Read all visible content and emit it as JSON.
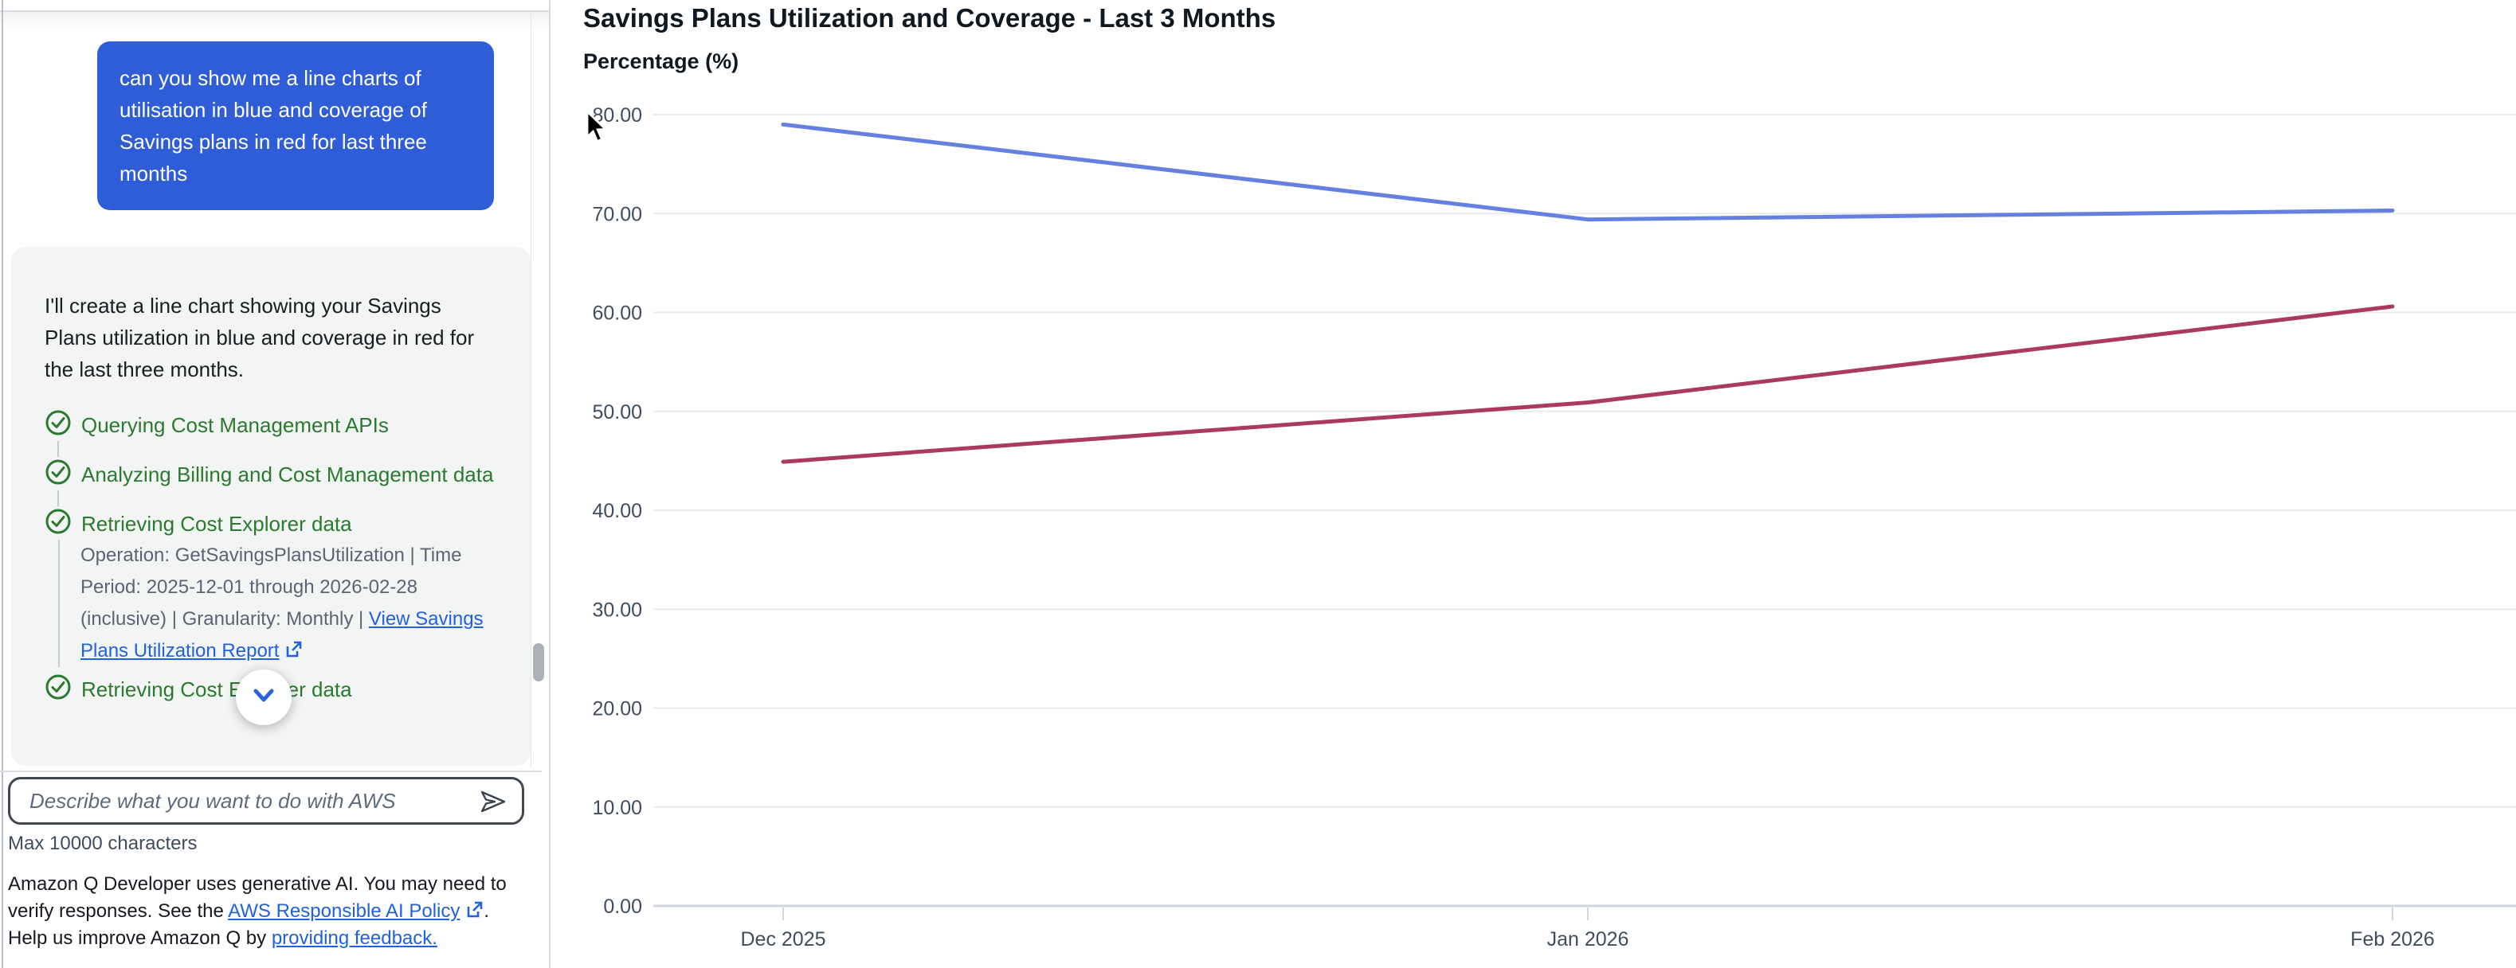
{
  "colors": {
    "user_bubble_blue": "#2f5dd8",
    "link_blue": "#2161de",
    "step_green": "#2b7a2f",
    "detail_gray": "#5b6572",
    "axis_label": "#414d5c",
    "gridline": "#e9ebee",
    "axis_line": "#d2d7dd"
  },
  "sidebar": {
    "user_message": "can you show me a line charts of utilisation in blue and coverage of Savings plans in red for last three months",
    "assistant_intro": "I'll create a line chart showing your Savings Plans utilization in blue and coverage in red for the last three months.",
    "steps": {
      "step1": "Querying Cost Management APIs",
      "step2": "Analyzing Billing and Cost Management data",
      "step3": "Retrieving Cost Explorer data",
      "step3_detail_prefix": "Operation: GetSavingsPlansUtilization | Time Period: 2025-12-01 through 2026-02-28 (inclusive) | Granularity: Monthly |  ",
      "step3_detail_link": "View Savings Plans Utilization Report",
      "step4": "Retrieving Cost Explorer data"
    },
    "input": {
      "placeholder": "Describe what you want to do with AWS",
      "max_note": "Max 10000 characters"
    },
    "footer": {
      "text_before_policy": "Amazon Q Developer uses generative AI. You may need to verify responses. See the ",
      "policy_link": "AWS Responsible AI Policy",
      "text_between": ". Help us improve Amazon Q by ",
      "feedback_link": "providing feedback."
    }
  },
  "chart_data": {
    "type": "line",
    "title": "Savings Plans Utilization and Coverage - Last 3 Months",
    "ylabel": "Percentage (%)",
    "xlabel": "",
    "categories": [
      "Dec 2025",
      "Jan 2026",
      "Feb 2026"
    ],
    "series": [
      {
        "name": "Utilization",
        "color": "#6580df",
        "values": [
          79.0,
          69.4,
          70.3
        ]
      },
      {
        "name": "Coverage",
        "color": "#ab3a62",
        "values": [
          44.9,
          50.9,
          60.6
        ]
      }
    ],
    "y_ticks": [
      "0.00",
      "10.00",
      "20.00",
      "30.00",
      "40.00",
      "50.00",
      "60.00",
      "70.00",
      "80.00"
    ],
    "y_tick_values": [
      0,
      10,
      20,
      30,
      40,
      50,
      60,
      70,
      80
    ],
    "ylim": [
      0,
      80
    ],
    "grid": true,
    "legend": "none"
  }
}
